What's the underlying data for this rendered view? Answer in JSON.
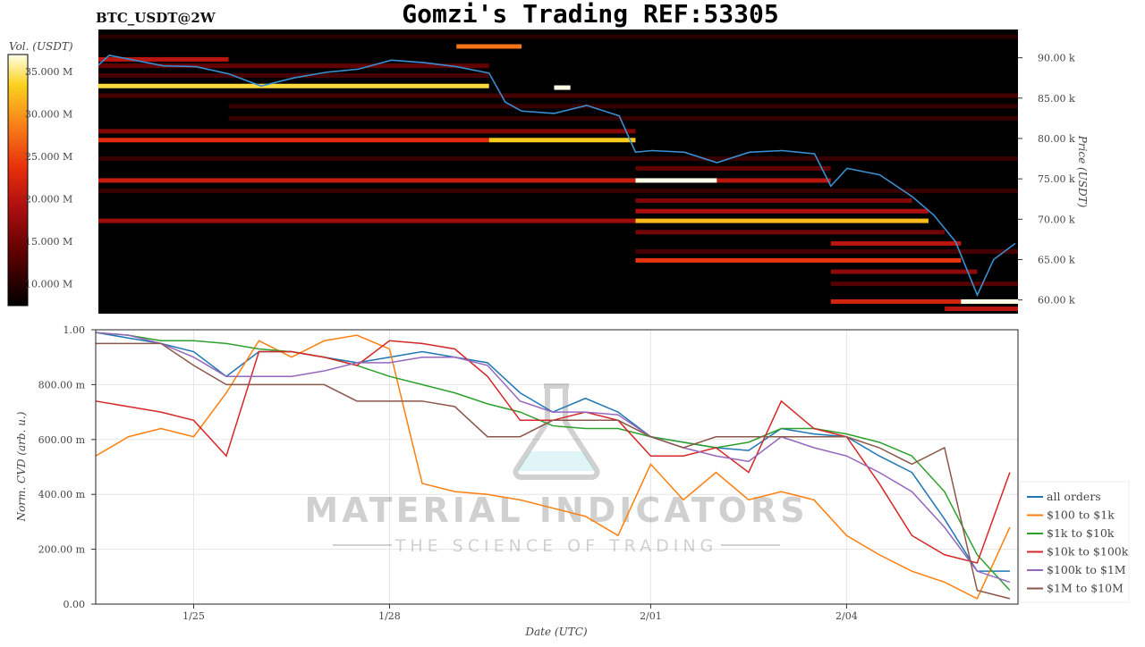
{
  "chart_data": [
    {
      "type": "heatmap",
      "title": "Gomzi's Trading REF:53305",
      "subtitle": "BTC_USDT@2W",
      "ylabel": "Price (USDT)",
      "ylim": [
        58.3,
        93.5
      ],
      "yticks": [
        "90.00 k",
        "85.00 k",
        "80.00 k",
        "75.00 k",
        "70.00 k",
        "65.00 k",
        "60.00 k"
      ],
      "ytick_values": [
        90,
        85,
        80,
        75,
        70,
        65,
        60
      ],
      "xlim": [
        "01-23T12:00",
        "02-06T15:00"
      ],
      "colorbar": {
        "label": "Vol. (USDT)",
        "range": [
          7.4,
          37
        ],
        "ticks": [
          "10.000 M",
          "15.000 M",
          "20.000 M",
          "25.000 M",
          "30.000 M",
          "35.000 M"
        ],
        "tick_values": [
          10,
          15,
          20,
          25,
          30,
          35
        ],
        "colormap": [
          "#000000",
          "#5a0000",
          "#b01010",
          "#e8300a",
          "#f7801a",
          "#fbd21e",
          "#ffffe8"
        ]
      },
      "liquidity_bands": [
        {
          "price": 92.6,
          "from": "01-23T12:00",
          "to": "02-06T15:00",
          "vol": 10
        },
        {
          "price": 91.4,
          "from": "01-29T00:00",
          "to": "01-30T00:00",
          "vol": 28
        },
        {
          "price": 89.8,
          "from": "01-23T12:00",
          "to": "01-25T12:00",
          "vol": 20
        },
        {
          "price": 89.0,
          "from": "01-23T12:00",
          "to": "01-29T12:00",
          "vol": 14
        },
        {
          "price": 87.8,
          "from": "01-23T12:00",
          "to": "01-29T12:00",
          "vol": 12
        },
        {
          "price": 86.5,
          "from": "01-23T12:00",
          "to": "01-29T12:00",
          "vol": 34
        },
        {
          "price": 86.3,
          "from": "01-30T12:00",
          "to": "01-30T18:00",
          "vol": 37
        },
        {
          "price": 85.3,
          "from": "01-23T12:00",
          "to": "02-06T15:00",
          "vol": 12
        },
        {
          "price": 84.0,
          "from": "01-25T12:00",
          "to": "02-06T15:00",
          "vol": 11
        },
        {
          "price": 82.5,
          "from": "01-25T12:00",
          "to": "02-06T15:00",
          "vol": 11
        },
        {
          "price": 80.9,
          "from": "01-23T12:00",
          "to": "01-31T18:00",
          "vol": 16
        },
        {
          "price": 79.8,
          "from": "01-23T12:00",
          "to": "01-29T12:00",
          "vol": 23
        },
        {
          "price": 79.8,
          "from": "01-29T12:00",
          "to": "01-31T18:00",
          "vol": 33
        },
        {
          "price": 77.5,
          "from": "01-23T12:00",
          "to": "02-06T15:00",
          "vol": 11
        },
        {
          "price": 76.3,
          "from": "01-31T18:00",
          "to": "02-03T18:00",
          "vol": 14
        },
        {
          "price": 74.8,
          "from": "01-23T12:00",
          "to": "01-31T18:00",
          "vol": 21
        },
        {
          "price": 74.8,
          "from": "01-31T18:00",
          "to": "02-02T00:00",
          "vol": 37
        },
        {
          "price": 74.8,
          "from": "02-02T00:00",
          "to": "02-03T18:00",
          "vol": 20
        },
        {
          "price": 73.5,
          "from": "01-23T12:00",
          "to": "02-06T15:00",
          "vol": 11
        },
        {
          "price": 72.3,
          "from": "01-31T18:00",
          "to": "02-05T00:00",
          "vol": 16
        },
        {
          "price": 71.0,
          "from": "01-31T18:00",
          "to": "02-05T06:00",
          "vol": 19
        },
        {
          "price": 69.8,
          "from": "01-23T12:00",
          "to": "01-31T18:00",
          "vol": 18
        },
        {
          "price": 69.8,
          "from": "01-31T18:00",
          "to": "02-05T06:00",
          "vol": 32
        },
        {
          "price": 68.4,
          "from": "01-31T18:00",
          "to": "02-05T12:00",
          "vol": 15
        },
        {
          "price": 67.0,
          "from": "02-03T18:00",
          "to": "02-05T18:00",
          "vol": 20
        },
        {
          "price": 66.0,
          "from": "01-31T18:00",
          "to": "02-06T15:00",
          "vol": 12
        },
        {
          "price": 64.9,
          "from": "01-31T18:00",
          "to": "02-05T18:00",
          "vol": 24
        },
        {
          "price": 63.5,
          "from": "02-03T18:00",
          "to": "02-06T00:00",
          "vol": 17
        },
        {
          "price": 62.0,
          "from": "02-03T18:00",
          "to": "02-06T15:00",
          "vol": 13
        },
        {
          "price": 59.8,
          "from": "02-03T18:00",
          "to": "02-05T18:00",
          "vol": 22
        },
        {
          "price": 59.8,
          "from": "02-05T18:00",
          "to": "02-06T15:00",
          "vol": 37
        },
        {
          "price": 58.9,
          "from": "02-05T12:00",
          "to": "02-06T15:00",
          "vol": 20
        }
      ],
      "price_series": {
        "color": "#3a8fd0",
        "points": [
          [
            "01-23T12:00",
            89.1
          ],
          [
            "01-23T16:00",
            90.3
          ],
          [
            "01-24T12:00",
            89.0
          ],
          [
            "01-25T00:00",
            88.9
          ],
          [
            "01-25T12:00",
            88.0
          ],
          [
            "01-26T00:00",
            86.5
          ],
          [
            "01-26T12:00",
            87.5
          ],
          [
            "01-27T00:00",
            88.2
          ],
          [
            "01-27T12:00",
            88.6
          ],
          [
            "01-28T00:00",
            89.7
          ],
          [
            "01-28T12:00",
            89.4
          ],
          [
            "01-29T00:00",
            88.9
          ],
          [
            "01-29T12:00",
            88.1
          ],
          [
            "01-29T18:00",
            84.5
          ],
          [
            "01-30T00:00",
            83.4
          ],
          [
            "01-30T12:00",
            83.1
          ],
          [
            "01-31T00:00",
            84.1
          ],
          [
            "01-31T12:00",
            82.8
          ],
          [
            "01-31T18:00",
            78.3
          ],
          [
            "02-01T00:00",
            78.5
          ],
          [
            "02-01T12:00",
            78.3
          ],
          [
            "02-02T00:00",
            77.0
          ],
          [
            "02-02T12:00",
            78.3
          ],
          [
            "02-03T00:00",
            78.5
          ],
          [
            "02-03T12:00",
            78.1
          ],
          [
            "02-03T18:00",
            74.1
          ],
          [
            "02-04T00:00",
            76.3
          ],
          [
            "02-04T12:00",
            75.5
          ],
          [
            "02-05T00:00",
            72.8
          ],
          [
            "02-05T08:00",
            70.5
          ],
          [
            "02-05T16:00",
            67.2
          ],
          [
            "02-06T00:00",
            60.6
          ],
          [
            "02-06T06:00",
            65.0
          ],
          [
            "02-06T14:00",
            67.0
          ]
        ]
      }
    },
    {
      "type": "line",
      "xlabel": "Date (UTC)",
      "ylabel": "Norm. CVD (arb. u.)",
      "ylim": [
        0,
        1
      ],
      "xlim": [
        "01-23T12:00",
        "02-06T15:00"
      ],
      "grid": true,
      "legend": "right",
      "yticks": [
        "0.00",
        "200.00 m",
        "400.00 m",
        "600.00 m",
        "800.00 m",
        "1.00"
      ],
      "ytick_values": [
        0,
        0.2,
        0.4,
        0.6,
        0.8,
        1.0
      ],
      "xticks": [
        "1/25",
        "1/28",
        "2/01",
        "2/04"
      ],
      "xtick_values": [
        "01-25T00:00",
        "01-28T00:00",
        "02-01T00:00",
        "02-04T00:00"
      ],
      "x_start": "01-23T12:00",
      "x_step_hours": 12,
      "series": [
        {
          "name": "all orders",
          "color": "#1f77b4",
          "values": [
            0.99,
            0.97,
            0.95,
            0.92,
            0.83,
            0.92,
            0.92,
            0.9,
            0.88,
            0.9,
            0.92,
            0.9,
            0.88,
            0.77,
            0.7,
            0.75,
            0.7,
            0.61,
            0.59,
            0.57,
            0.56,
            0.64,
            0.62,
            0.61,
            0.54,
            0.48,
            0.31,
            0.12,
            0.12
          ]
        },
        {
          "name": "$100 to $1k",
          "color": "#ff7f0e",
          "values": [
            0.54,
            0.61,
            0.64,
            0.61,
            0.77,
            0.96,
            0.9,
            0.96,
            0.98,
            0.93,
            0.44,
            0.41,
            0.4,
            0.38,
            0.35,
            0.32,
            0.25,
            0.51,
            0.38,
            0.48,
            0.38,
            0.41,
            0.38,
            0.25,
            0.18,
            0.12,
            0.08,
            0.02,
            0.28
          ]
        },
        {
          "name": "$1k to $10k",
          "color": "#2ca02c",
          "values": [
            0.99,
            0.98,
            0.96,
            0.96,
            0.95,
            0.93,
            0.92,
            0.9,
            0.87,
            0.83,
            0.8,
            0.77,
            0.73,
            0.7,
            0.65,
            0.64,
            0.64,
            0.61,
            0.59,
            0.57,
            0.59,
            0.64,
            0.64,
            0.62,
            0.59,
            0.54,
            0.41,
            0.18,
            0.05
          ]
        },
        {
          "name": "$10k to $100k",
          "color": "#d62728",
          "values": [
            0.74,
            0.72,
            0.7,
            0.67,
            0.54,
            0.92,
            0.92,
            0.9,
            0.87,
            0.96,
            0.95,
            0.93,
            0.83,
            0.67,
            0.67,
            0.7,
            0.67,
            0.54,
            0.54,
            0.57,
            0.48,
            0.74,
            0.64,
            0.61,
            0.44,
            0.25,
            0.18,
            0.15,
            0.48
          ]
        },
        {
          "name": "$100k to $1M",
          "color": "#9467bd",
          "values": [
            0.99,
            0.98,
            0.95,
            0.9,
            0.83,
            0.83,
            0.83,
            0.85,
            0.88,
            0.88,
            0.9,
            0.9,
            0.87,
            0.74,
            0.7,
            0.7,
            0.69,
            0.61,
            0.57,
            0.54,
            0.52,
            0.61,
            0.57,
            0.54,
            0.48,
            0.41,
            0.28,
            0.12,
            0.08
          ]
        },
        {
          "name": "$1M to $10M",
          "color": "#8c564b",
          "values": [
            0.95,
            0.95,
            0.95,
            0.87,
            0.8,
            0.8,
            0.8,
            0.8,
            0.74,
            0.74,
            0.74,
            0.72,
            0.61,
            0.61,
            0.67,
            0.67,
            0.67,
            0.61,
            0.57,
            0.61,
            0.61,
            0.61,
            0.61,
            0.61,
            0.57,
            0.51,
            0.57,
            0.05,
            0.02
          ]
        }
      ]
    }
  ],
  "watermark": {
    "name": "MATERIAL INDICATORS",
    "tagline": "THE SCIENCE OF TRADING"
  }
}
